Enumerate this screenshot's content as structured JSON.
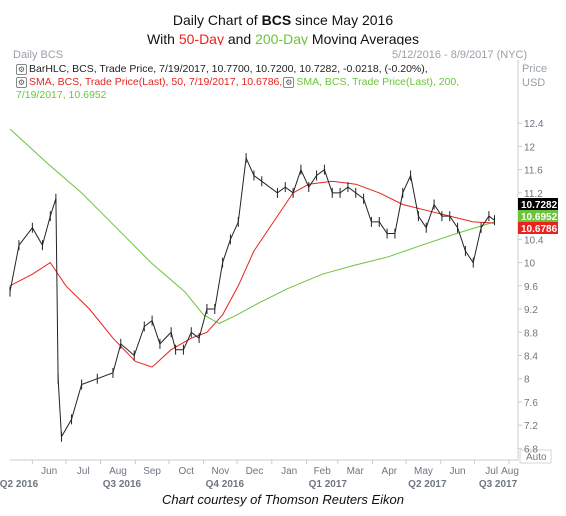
{
  "title_line1_a": "Daily Chart of ",
  "title_line1_b": "BCS",
  "title_line1_c": " since May 2016",
  "title_line2_a": "With ",
  "title_line2_b": "50-Day",
  "title_line2_c": " and ",
  "title_line2_d": "200-Day",
  "title_line2_e": " Moving Averages",
  "panel_name": "Daily BCS",
  "date_range": "5/12/2016 - 8/9/2017 (NYC)",
  "price_label": "Price",
  "currency_label": "USD",
  "legend": {
    "line1": "BarHLC, BCS, Trade Price, 7/19/2017, 10.7700, 10.7200, 10.7282, -0.0218, (-0.20%),",
    "line2": "SMA, BCS, Trade Price(Last),  50,  7/19/2017, 10.6786,",
    "line2b": "SMA, BCS, Trade Price(Last),  200,",
    "line3": "7/19/2017,  10.6952"
  },
  "credit": "Chart courtesy of Thomson Reuters Eikon",
  "auto_label": "Auto",
  "colors": {
    "price": "#222222",
    "sma50": "#e8231f",
    "sma200": "#6bc43a",
    "last_price_tag": "#000000"
  },
  "chart_data": {
    "type": "line",
    "ylim": [
      6.6,
      12.8
    ],
    "y_ticks": [
      "12.4",
      "12",
      "11.6",
      "11.2",
      "10.8",
      "10.4",
      "10",
      "9.6",
      "9.2",
      "8.8",
      "8.4",
      "8",
      "7.6",
      "7.2",
      "6.8"
    ],
    "x_month_labels": [
      "Jun",
      "Jul",
      "Aug",
      "Sep",
      "Oct",
      "Nov",
      "Dec",
      "Jan",
      "Feb",
      "Mar",
      "Apr",
      "May",
      "Jun",
      "Jul",
      "Aug"
    ],
    "x_quarter_labels": [
      "Q2 2016",
      "Q3 2016",
      "Q4 2016",
      "Q1 2017",
      "Q2 2017",
      "Q3 2017"
    ],
    "last_values": [
      {
        "label": "10.7282",
        "value": 10.7282,
        "series": "price"
      },
      {
        "label": "10.6952",
        "value": 10.6952,
        "series": "sma200"
      },
      {
        "label": "10.6786",
        "value": 10.6786,
        "series": "sma50"
      }
    ],
    "price_points": [
      [
        "2016-05-12",
        9.5
      ],
      [
        "2016-05-20",
        10.3
      ],
      [
        "2016-06-01",
        10.6
      ],
      [
        "2016-06-10",
        10.3
      ],
      [
        "2016-06-17",
        10.8
      ],
      [
        "2016-06-22",
        11.1
      ],
      [
        "2016-06-24",
        8.0
      ],
      [
        "2016-06-27",
        7.0
      ],
      [
        "2016-07-06",
        7.3
      ],
      [
        "2016-07-15",
        7.9
      ],
      [
        "2016-07-29",
        8.0
      ],
      [
        "2016-08-12",
        8.1
      ],
      [
        "2016-08-19",
        8.6
      ],
      [
        "2016-08-31",
        8.4
      ],
      [
        "2016-09-09",
        8.9
      ],
      [
        "2016-09-16",
        9.0
      ],
      [
        "2016-09-23",
        8.6
      ],
      [
        "2016-10-03",
        8.8
      ],
      [
        "2016-10-07",
        8.5
      ],
      [
        "2016-10-14",
        8.5
      ],
      [
        "2016-10-21",
        8.8
      ],
      [
        "2016-10-28",
        8.7
      ],
      [
        "2016-11-04",
        9.2
      ],
      [
        "2016-11-11",
        9.2
      ],
      [
        "2016-11-18",
        10.0
      ],
      [
        "2016-11-25",
        10.4
      ],
      [
        "2016-12-02",
        10.7
      ],
      [
        "2016-12-09",
        11.8
      ],
      [
        "2016-12-16",
        11.5
      ],
      [
        "2016-12-23",
        11.4
      ],
      [
        "2017-01-06",
        11.2
      ],
      [
        "2017-01-13",
        11.3
      ],
      [
        "2017-01-20",
        11.2
      ],
      [
        "2017-01-27",
        11.6
      ],
      [
        "2017-02-03",
        11.3
      ],
      [
        "2017-02-10",
        11.5
      ],
      [
        "2017-02-17",
        11.6
      ],
      [
        "2017-02-24",
        11.2
      ],
      [
        "2017-03-03",
        11.2
      ],
      [
        "2017-03-10",
        11.3
      ],
      [
        "2017-03-17",
        11.2
      ],
      [
        "2017-03-24",
        11.1
      ],
      [
        "2017-03-31",
        10.7
      ],
      [
        "2017-04-07",
        10.7
      ],
      [
        "2017-04-14",
        10.5
      ],
      [
        "2017-04-21",
        10.5
      ],
      [
        "2017-04-28",
        11.2
      ],
      [
        "2017-05-05",
        11.5
      ],
      [
        "2017-05-12",
        10.8
      ],
      [
        "2017-05-19",
        10.6
      ],
      [
        "2017-05-26",
        11.0
      ],
      [
        "2017-06-02",
        10.8
      ],
      [
        "2017-06-09",
        10.8
      ],
      [
        "2017-06-16",
        10.6
      ],
      [
        "2017-06-23",
        10.2
      ],
      [
        "2017-06-30",
        10.0
      ],
      [
        "2017-07-07",
        10.6
      ],
      [
        "2017-07-14",
        10.8
      ],
      [
        "2017-07-19",
        10.73
      ]
    ],
    "sma50_points": [
      [
        "2016-05-12",
        9.6
      ],
      [
        "2016-06-01",
        9.8
      ],
      [
        "2016-06-17",
        10.0
      ],
      [
        "2016-07-01",
        9.6
      ],
      [
        "2016-07-22",
        9.2
      ],
      [
        "2016-08-12",
        8.7
      ],
      [
        "2016-09-01",
        8.3
      ],
      [
        "2016-09-16",
        8.2
      ],
      [
        "2016-10-03",
        8.5
      ],
      [
        "2016-10-21",
        8.7
      ],
      [
        "2016-11-04",
        8.8
      ],
      [
        "2016-11-18",
        9.1
      ],
      [
        "2016-12-02",
        9.6
      ],
      [
        "2016-12-16",
        10.2
      ],
      [
        "2017-01-06",
        10.8
      ],
      [
        "2017-01-20",
        11.2
      ],
      [
        "2017-02-03",
        11.35
      ],
      [
        "2017-02-24",
        11.4
      ],
      [
        "2017-03-17",
        11.35
      ],
      [
        "2017-04-07",
        11.2
      ],
      [
        "2017-04-28",
        11.0
      ],
      [
        "2017-05-19",
        10.9
      ],
      [
        "2017-06-09",
        10.8
      ],
      [
        "2017-06-30",
        10.7
      ],
      [
        "2017-07-19",
        10.68
      ]
    ],
    "sma200_points": [
      [
        "2016-05-12",
        12.3
      ],
      [
        "2016-06-15",
        11.7
      ],
      [
        "2016-07-15",
        11.2
      ],
      [
        "2016-08-15",
        10.6
      ],
      [
        "2016-09-15",
        10.0
      ],
      [
        "2016-10-15",
        9.5
      ],
      [
        "2016-11-01",
        9.1
      ],
      [
        "2016-11-15",
        8.95
      ],
      [
        "2016-12-01",
        9.1
      ],
      [
        "2016-12-20",
        9.3
      ],
      [
        "2017-01-15",
        9.55
      ],
      [
        "2017-02-15",
        9.8
      ],
      [
        "2017-03-15",
        9.95
      ],
      [
        "2017-04-15",
        10.1
      ],
      [
        "2017-05-15",
        10.3
      ],
      [
        "2017-06-15",
        10.5
      ],
      [
        "2017-07-19",
        10.7
      ]
    ]
  }
}
